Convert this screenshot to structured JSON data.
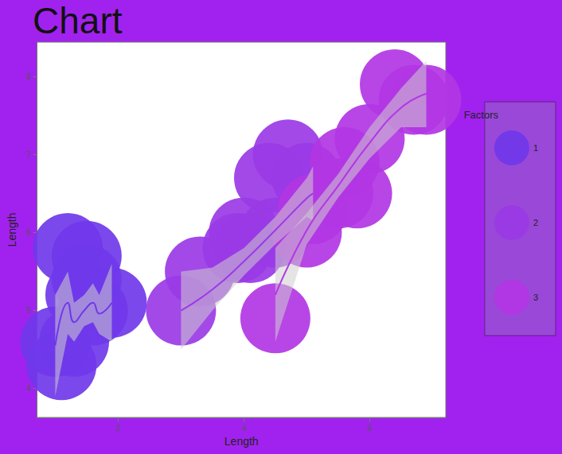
{
  "chart_data": {
    "type": "line",
    "title": "Chart",
    "x_label": "Length",
    "y_label": "Length",
    "xlim": [
      0.71,
      7.21
    ],
    "ylim": [
      3.63,
      8.44
    ],
    "xticks": [
      2,
      4,
      6
    ],
    "yticks": [
      4,
      5,
      6,
      7,
      8
    ],
    "grid": false,
    "legend": "right",
    "legend_title": "Factors",
    "marker": "circle",
    "series": [
      {
        "name": "1",
        "color": "#7038ea",
        "x": [
          1.0,
          1.2,
          1.3,
          1.46,
          1.6,
          1.7,
          1.9
        ],
        "values": [
          4.55,
          5.1,
          4.85,
          5.0,
          5.1,
          4.96,
          5.1
        ],
        "lower": [
          3.9,
          4.7,
          4.6,
          4.8,
          4.85,
          4.7,
          4.6
        ],
        "upper": [
          5.2,
          5.5,
          5.1,
          5.2,
          5.35,
          5.2,
          5.6
        ],
        "points": {
          "x": [
            1.2,
            1.5,
            1.1,
            1.4,
            1.6,
            1.3,
            1.0,
            1.5,
            1.9
          ],
          "y": [
            5.8,
            5.7,
            4.3,
            5.2,
            5.0,
            4.6,
            4.6,
            5.4,
            5.1
          ]
        }
      },
      {
        "name": "2",
        "color": "#9a3ae6",
        "x": [
          3.0,
          3.5,
          4.0,
          4.5,
          5.0,
          5.1
        ],
        "values": [
          5.0,
          5.27,
          5.63,
          6.03,
          6.44,
          6.5
        ],
        "lower": [
          4.5,
          5.0,
          5.45,
          5.85,
          6.2,
          6.15
        ],
        "upper": [
          5.5,
          5.55,
          5.8,
          6.2,
          6.7,
          6.85
        ],
        "points": {
          "x": [
            3.0,
            3.3,
            4.5,
            4.0,
            4.7,
            4.4,
            3.9,
            5.0,
            4.1
          ],
          "y": [
            5.0,
            5.5,
            6.0,
            6.0,
            7.0,
            6.7,
            5.8,
            6.7,
            5.8
          ]
        }
      },
      {
        "name": "3",
        "color": "#b236e4",
        "x": [
          4.5,
          5.0,
          5.5,
          6.0,
          6.5,
          6.9
        ],
        "values": [
          5.2,
          6.03,
          6.6,
          7.15,
          7.6,
          7.78
        ],
        "lower": [
          4.6,
          5.85,
          6.45,
          6.95,
          7.35,
          7.35
        ],
        "upper": [
          5.8,
          6.25,
          6.75,
          7.35,
          7.85,
          8.2
        ],
        "points": {
          "x": [
            4.5,
            5.0,
            5.5,
            5.1,
            6.0,
            6.7,
            6.9,
            6.4,
            5.6,
            5.8
          ],
          "y": [
            4.9,
            6.0,
            6.5,
            6.3,
            7.2,
            7.7,
            7.7,
            7.9,
            6.9,
            6.5
          ]
        }
      }
    ]
  }
}
